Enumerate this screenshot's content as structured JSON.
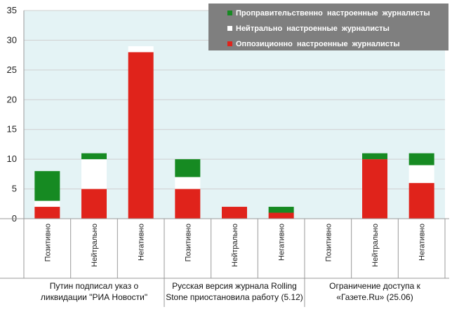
{
  "chart_data": {
    "type": "bar",
    "stacked": true,
    "ylim": [
      0,
      35
    ],
    "yticks": [
      0,
      5,
      10,
      15,
      20,
      25,
      30,
      35
    ],
    "grid": true,
    "legend_position": "top-right",
    "categories": [
      "Позитивно",
      "Нейтрально",
      "Негативно",
      "Позитивно",
      "Нейтрально",
      "Негативно",
      "Позитивно",
      "Нейтрально",
      "Негативно"
    ],
    "groups": [
      {
        "label_lines": [
          "Путин подписал указ о",
          "ликвидации \"РИА Новости\""
        ],
        "size": 3
      },
      {
        "label_lines": [
          "Русская версия журнала Rolling",
          "Stone приостановила работу (5.12)"
        ],
        "size": 3
      },
      {
        "label_lines": [
          "Ограничение доступа к",
          "«Газете.Ru» (25.06)"
        ],
        "size": 3
      }
    ],
    "series": [
      {
        "name": "Оппозиционно  настроенные  журналисты",
        "color": "#e0231b",
        "values": [
          2,
          5,
          28,
          5,
          2,
          1,
          0,
          10,
          6
        ]
      },
      {
        "name": "Нейтрально  настроенные  журналисты",
        "color": "#ffffff",
        "values": [
          1,
          5,
          1,
          2,
          0,
          0,
          0,
          0,
          3
        ]
      },
      {
        "name": "Проправительственно  настроенные  журналисты",
        "color": "#168a22",
        "values": [
          5,
          1,
          0,
          3,
          0,
          1,
          0,
          1,
          2
        ]
      }
    ],
    "legend_order": [
      2,
      1,
      0
    ]
  }
}
